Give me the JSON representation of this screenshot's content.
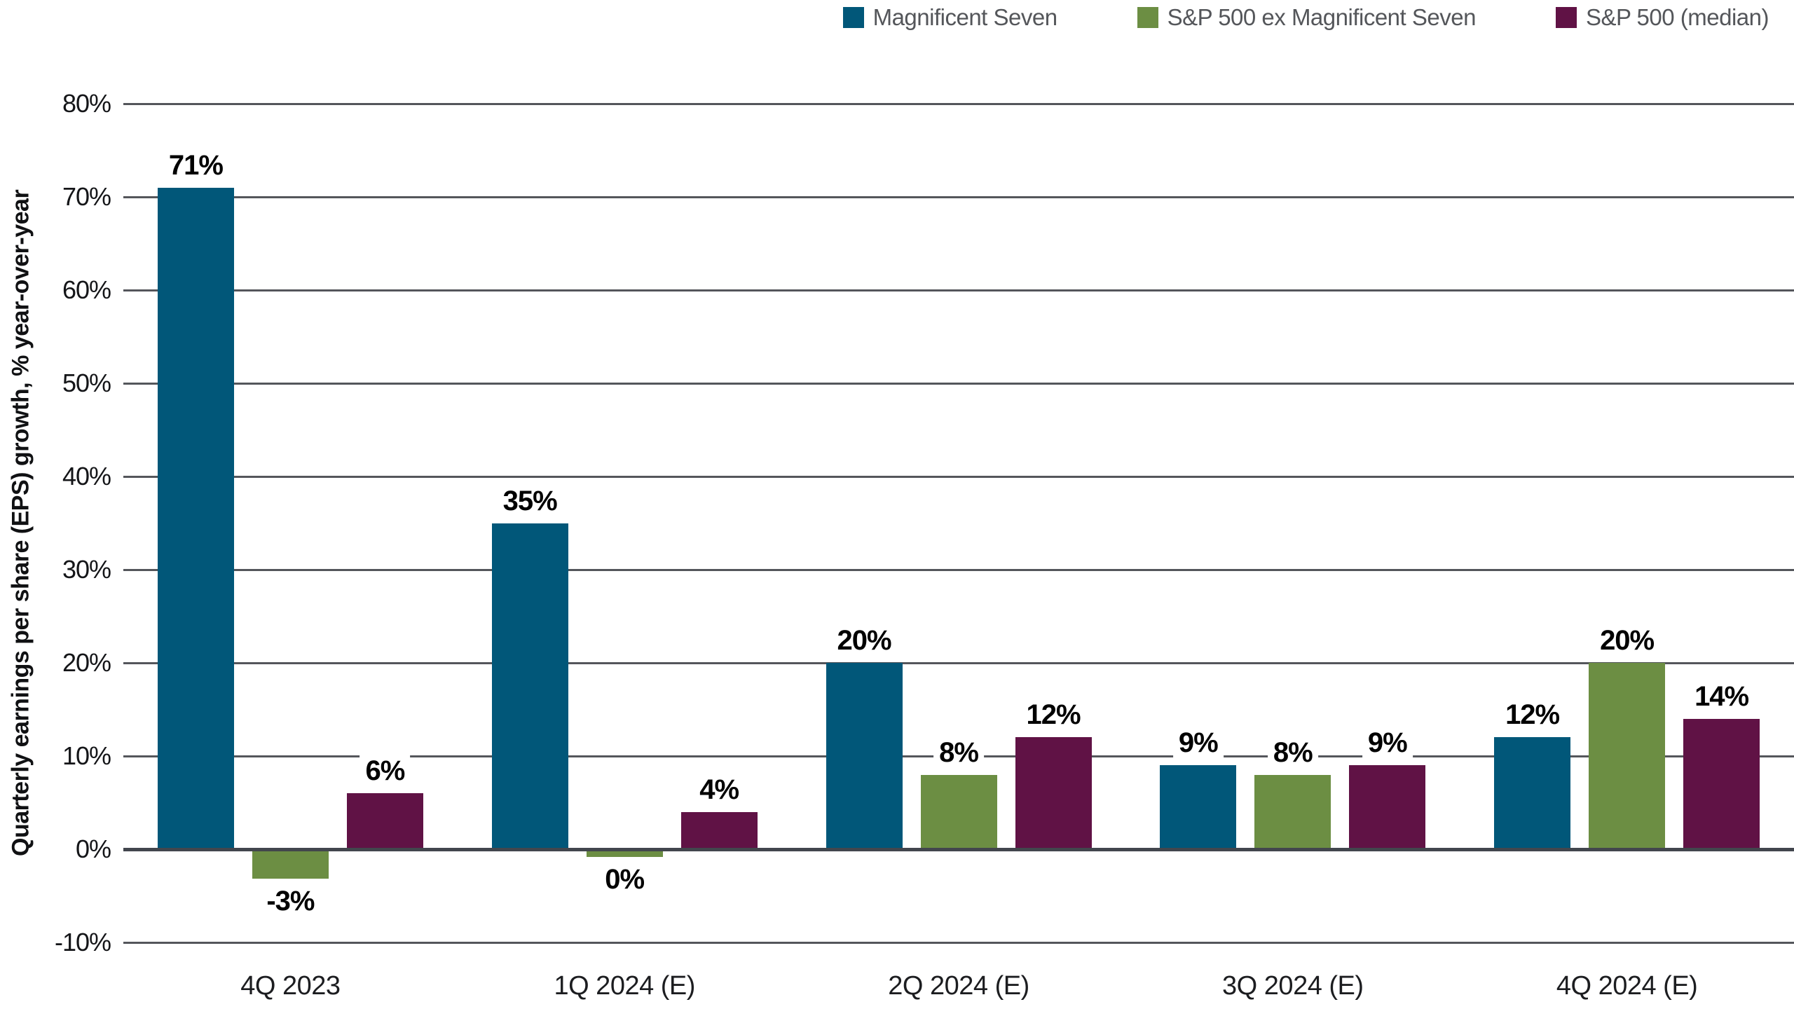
{
  "legend": {
    "items": [
      {
        "label": "Magnificent Seven",
        "color": "#015779"
      },
      {
        "label": "S&P 500 ex Magnificent Seven",
        "color": "#6c8e43"
      },
      {
        "label": "S&P 500 (median)",
        "color": "#601245"
      }
    ]
  },
  "chart_data": {
    "type": "bar",
    "title": "",
    "xlabel": "",
    "ylabel": "Quarterly earnings per share (EPS) growth, % year-over-year",
    "categories": [
      "4Q 2023",
      "1Q 2024 (E)",
      "2Q 2024 (E)",
      "3Q 2024 (E)",
      "4Q 2024 (E)"
    ],
    "series": [
      {
        "name": "Magnificent Seven",
        "color": "#015779",
        "values": [
          71,
          35,
          20,
          9,
          12
        ],
        "labels": [
          "71%",
          "35%",
          "20%",
          "9%",
          "12%"
        ]
      },
      {
        "name": "S&P 500 ex Magnificent Seven",
        "color": "#6c8e43",
        "values": [
          -3,
          0,
          8,
          8,
          20
        ],
        "labels": [
          "-3%",
          "0%",
          "8%",
          "8%",
          "20%"
        ]
      },
      {
        "name": "S&P 500 (median)",
        "color": "#601245",
        "values": [
          6,
          4,
          12,
          9,
          14
        ],
        "labels": [
          "6%",
          "4%",
          "12%",
          "9%",
          "14%"
        ]
      }
    ],
    "ylim": [
      -10,
      80
    ],
    "ytick_step": 10,
    "ytick_suffix": "%",
    "grid": true,
    "legend_position": "top-right"
  },
  "style_colors": {
    "gridline": "#54565b",
    "zero_line": "#42464d",
    "background": "#ffffff",
    "legend_text": "#54565a",
    "tick_text": "#141518",
    "data_label_text": "#000000"
  }
}
